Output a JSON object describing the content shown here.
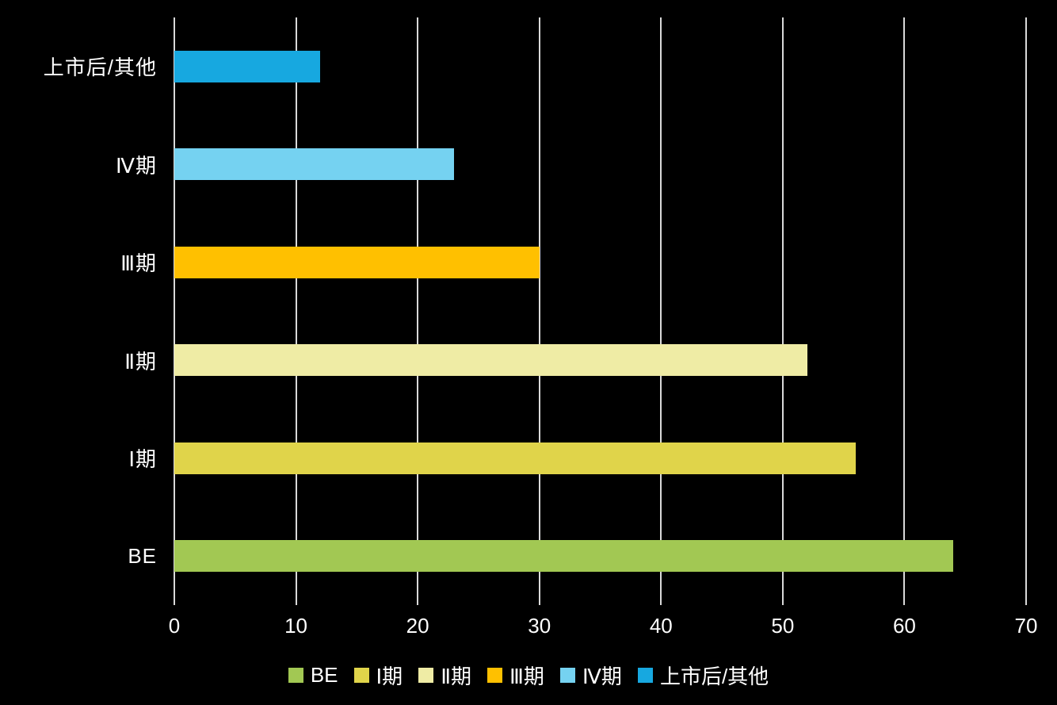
{
  "style": {
    "background": "#000000",
    "text_color": "#FFFFFF",
    "gridline_color": "#D9D9D9"
  },
  "chart_data": {
    "type": "bar",
    "orientation": "horizontal",
    "title": "",
    "xlabel": "",
    "ylabel": "",
    "categories": [
      "BE",
      "Ⅰ期",
      "Ⅱ期",
      "Ⅲ期",
      "Ⅳ期",
      "上市后/其他"
    ],
    "values": [
      64,
      56,
      52,
      30,
      23,
      12
    ],
    "colors": [
      "#A2C853",
      "#E0D44A",
      "#EFECA5",
      "#FFC000",
      "#75D2F1",
      "#17A8E0"
    ],
    "row_order_top_to_bottom": [
      "上市后/其他",
      "Ⅳ期",
      "Ⅲ期",
      "Ⅱ期",
      "Ⅰ期",
      "BE"
    ],
    "xlim": [
      0,
      70
    ],
    "x_ticks": [
      "0",
      "10",
      "20",
      "30",
      "40",
      "50",
      "60",
      "70"
    ],
    "grid": true,
    "legend_position": "bottom",
    "legend_labels": [
      "BE",
      "Ⅰ期",
      "Ⅱ期",
      "Ⅲ期",
      "Ⅳ期",
      "上市后/其他"
    ]
  }
}
